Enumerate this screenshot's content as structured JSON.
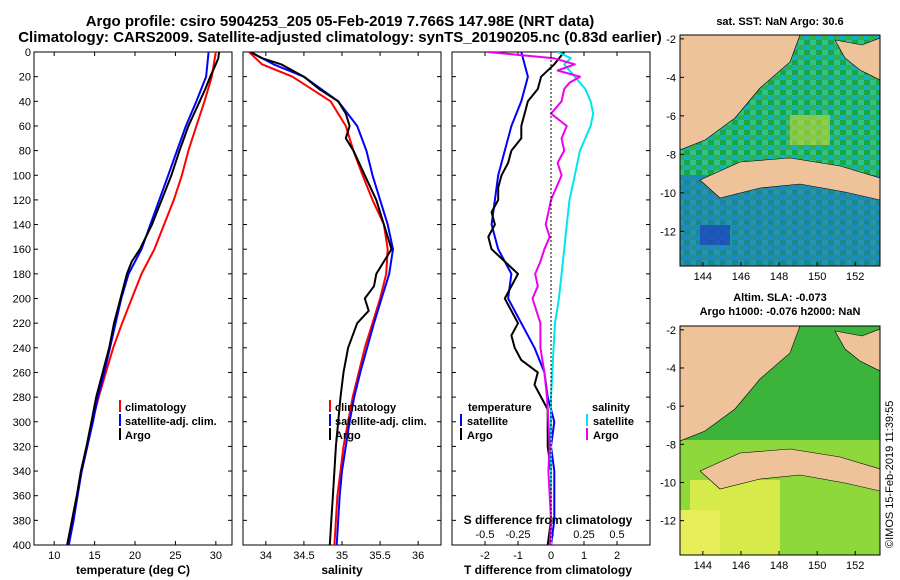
{
  "header": {
    "title_line1": "Argo profile: csiro 5904253_205 05-Feb-2019 7.766S 147.98E (NRT data)",
    "title_line2": "Climatology: CARS2009. Satellite-adjusted climatology: synTS_20190205.nc (0.83d earlier)"
  },
  "colors": {
    "climatology": "#ff0000",
    "satellite": "#0000ff",
    "argo": "#000000",
    "salinity_satellite": "#00e5ee",
    "salinity_argo": "#ee00ee",
    "land": "#efc39a"
  },
  "map_sst": {
    "title": "sat. SST: NaN Argo: 30.6",
    "xticks": [
      "144",
      "146",
      "148",
      "150",
      "152"
    ],
    "yticks": [
      "-2",
      "-4",
      "-6",
      "-8",
      "-10",
      "-12"
    ]
  },
  "map_sla": {
    "title_line1": "Altim. SLA: -0.073",
    "title_line2": "Argo h1000: -0.076 h2000: NaN",
    "xticks": [
      "144",
      "146",
      "148",
      "150",
      "152"
    ],
    "yticks": [
      "-2",
      "-4",
      "-6",
      "-8",
      "-10",
      "-12"
    ]
  },
  "footer": {
    "credit": "©IMOS 15-Feb-2019 11:39:55"
  },
  "chart_data": [
    {
      "type": "line",
      "name": "temperature",
      "xlabel": "temperature (deg C)",
      "xlim": [
        7.5,
        32
      ],
      "ylim": [
        0,
        400
      ],
      "yreversed": true,
      "xticks": [
        10,
        15,
        20,
        25,
        30
      ],
      "yticks": [
        0,
        20,
        40,
        60,
        80,
        100,
        120,
        140,
        160,
        180,
        200,
        220,
        240,
        260,
        280,
        300,
        320,
        340,
        360,
        380,
        400
      ],
      "legend": [
        "climatology",
        "satellite-adj. clim.",
        "Argo"
      ],
      "series": [
        {
          "name": "climatology",
          "depth": [
            0,
            20,
            40,
            60,
            80,
            100,
            120,
            140,
            160,
            180,
            200,
            220,
            240,
            260,
            280,
            300,
            320,
            340,
            360,
            380,
            400
          ],
          "values": [
            30.0,
            29.5,
            28.6,
            27.6,
            26.6,
            25.8,
            24.8,
            23.6,
            22.4,
            20.8,
            19.6,
            18.4,
            17.3,
            16.4,
            15.5,
            14.7,
            14.1,
            13.4,
            12.8,
            12.2,
            11.8
          ]
        },
        {
          "name": "satellite-adj. clim.",
          "depth": [
            0,
            20,
            40,
            60,
            80,
            100,
            120,
            140,
            160,
            180,
            200,
            220,
            240,
            260,
            280,
            300,
            320,
            340,
            360,
            380,
            400
          ],
          "values": [
            29.1,
            28.8,
            27.6,
            26.3,
            25.2,
            24.1,
            23.0,
            21.9,
            20.8,
            19.2,
            18.3,
            17.6,
            16.9,
            16.2,
            15.4,
            14.8,
            14.1,
            13.4,
            12.9,
            12.4,
            11.8
          ]
        },
        {
          "name": "Argo",
          "depth": [
            0,
            5,
            10,
            20,
            30,
            40,
            60,
            80,
            100,
            120,
            140,
            160,
            170,
            180,
            200,
            220,
            240,
            260,
            280,
            300,
            320,
            340,
            360,
            380,
            400
          ],
          "values": [
            30.4,
            30.3,
            30.0,
            29.3,
            28.7,
            28.0,
            26.6,
            25.5,
            24.5,
            23.3,
            22.1,
            20.6,
            19.6,
            19.0,
            18.2,
            17.4,
            16.8,
            16.0,
            15.2,
            14.6,
            14.0,
            13.3,
            12.8,
            12.2,
            11.6
          ]
        }
      ]
    },
    {
      "type": "line",
      "name": "salinity",
      "xlabel": "salinity",
      "xlim": [
        33.7,
        36.3
      ],
      "ylim": [
        0,
        400
      ],
      "yreversed": true,
      "xticks": [
        34,
        34.5,
        35,
        35.5,
        36
      ],
      "yticks": [
        0,
        20,
        40,
        60,
        80,
        100,
        120,
        140,
        160,
        180,
        200,
        220,
        240,
        260,
        280,
        300,
        320,
        340,
        360,
        380,
        400
      ],
      "legend": [
        "climatology",
        "satellite-adj. clim.",
        "Argo"
      ],
      "series": [
        {
          "name": "climatology",
          "depth": [
            0,
            10,
            20,
            40,
            60,
            80,
            100,
            120,
            140,
            160,
            180,
            200,
            220,
            240,
            260,
            280,
            300,
            320,
            340,
            360,
            380,
            400
          ],
          "values": [
            33.78,
            33.95,
            34.35,
            34.85,
            35.05,
            35.15,
            35.27,
            35.4,
            35.55,
            35.6,
            35.58,
            35.5,
            35.4,
            35.3,
            35.22,
            35.14,
            35.08,
            35.02,
            34.98,
            34.94,
            34.92,
            34.9
          ]
        },
        {
          "name": "satellite-adj. clim.",
          "depth": [
            0,
            10,
            20,
            40,
            60,
            80,
            100,
            120,
            140,
            160,
            180,
            200,
            220,
            240,
            260,
            280,
            300,
            320,
            340,
            360,
            380,
            400
          ],
          "values": [
            33.8,
            34.1,
            34.5,
            34.95,
            35.2,
            35.32,
            35.4,
            35.5,
            35.6,
            35.67,
            35.62,
            35.52,
            35.42,
            35.33,
            35.24,
            35.16,
            35.1,
            35.05,
            35.0,
            34.97,
            34.95,
            34.93
          ]
        },
        {
          "name": "Argo",
          "depth": [
            0,
            5,
            10,
            20,
            30,
            40,
            50,
            60,
            70,
            80,
            100,
            120,
            140,
            160,
            170,
            180,
            190,
            200,
            210,
            220,
            240,
            260,
            280,
            300,
            320,
            340,
            360,
            380,
            400
          ],
          "values": [
            33.8,
            33.95,
            34.2,
            34.5,
            34.7,
            34.95,
            35.05,
            35.1,
            35.05,
            35.15,
            35.3,
            35.45,
            35.55,
            35.65,
            35.55,
            35.45,
            35.42,
            35.3,
            35.35,
            35.2,
            35.08,
            35.02,
            34.98,
            34.95,
            34.92,
            34.9,
            34.88,
            34.86,
            34.84
          ]
        }
      ]
    },
    {
      "type": "line",
      "name": "difference",
      "xlabel": "T difference from climatology",
      "xlabel_top": "S difference from climatology",
      "xlim": [
        -3,
        3
      ],
      "ylim": [
        0,
        400
      ],
      "yreversed": true,
      "xticks": [
        "-2",
        "-1",
        "0",
        "1",
        "2"
      ],
      "xticks_salinity": [
        "-0.5",
        "-0.25",
        "0",
        "0.25",
        "0.5"
      ],
      "yticks": [
        0,
        20,
        40,
        60,
        80,
        100,
        120,
        140,
        160,
        180,
        200,
        220,
        240,
        260,
        280,
        300,
        320,
        340,
        360,
        380,
        400
      ],
      "legend_temperature": {
        "heading": "temperature",
        "items": [
          "satellite",
          "Argo"
        ]
      },
      "legend_salinity": {
        "heading": "salinity",
        "items": [
          "satellite",
          "Argo"
        ]
      },
      "series": [
        {
          "name": "temperature satellite",
          "depth": [
            0,
            20,
            40,
            60,
            80,
            100,
            120,
            140,
            160,
            180,
            200,
            220,
            240,
            260,
            280,
            300,
            320,
            340,
            360,
            380,
            400
          ],
          "values": [
            -0.9,
            -0.7,
            -0.9,
            -1.2,
            -1.4,
            -1.6,
            -1.7,
            -1.8,
            -1.6,
            -1.2,
            -1.3,
            -0.9,
            -0.5,
            -0.2,
            -0.1,
            0.1,
            0.0,
            0.1,
            0.1,
            0.1,
            0.0
          ]
        },
        {
          "name": "temperature Argo",
          "depth": [
            0,
            10,
            20,
            30,
            40,
            50,
            60,
            70,
            80,
            90,
            100,
            110,
            120,
            130,
            140,
            150,
            160,
            170,
            180,
            190,
            200,
            210,
            220,
            230,
            240,
            250,
            260,
            270,
            280,
            290,
            300,
            320,
            340,
            360,
            380,
            400
          ],
          "values": [
            0.4,
            0.1,
            -0.3,
            -0.4,
            -0.7,
            -0.8,
            -0.9,
            -0.9,
            -1.2,
            -1.3,
            -1.5,
            -1.6,
            -1.6,
            -1.8,
            -1.7,
            -1.9,
            -1.8,
            -1.4,
            -1.0,
            -1.2,
            -1.4,
            -1.2,
            -1.0,
            -1.2,
            -1.1,
            -0.9,
            -0.4,
            -0.5,
            -0.3,
            -0.1,
            -0.1,
            -0.1,
            0.0,
            0.0,
            0.0,
            -0.1
          ]
        },
        {
          "name": "salinity satellite",
          "depth": [
            0,
            5,
            10,
            20,
            30,
            40,
            50,
            60,
            80,
            100,
            120,
            140,
            160,
            180,
            200,
            220,
            240,
            260,
            280,
            300,
            320,
            340,
            360,
            380,
            400
          ],
          "values": [
            0.05,
            0.15,
            0.1,
            0.18,
            0.26,
            0.3,
            0.32,
            0.3,
            0.22,
            0.18,
            0.14,
            0.12,
            0.1,
            0.08,
            0.06,
            0.03,
            0.02,
            0.01,
            0.0,
            0.0,
            0.0,
            0.0,
            0.0,
            0.0,
            0.0
          ]
        },
        {
          "name": "salinity Argo",
          "depth": [
            0,
            5,
            10,
            15,
            20,
            25,
            30,
            40,
            50,
            60,
            70,
            80,
            90,
            100,
            110,
            120,
            130,
            140,
            150,
            160,
            170,
            180,
            190,
            200,
            220,
            240,
            260,
            280,
            300,
            320,
            340,
            360,
            380,
            400
          ],
          "values": [
            -0.48,
            0.02,
            0.18,
            0.05,
            0.22,
            0.14,
            0.1,
            0.08,
            0.0,
            0.12,
            0.08,
            0.1,
            0.05,
            0.08,
            0.04,
            0.0,
            -0.02,
            -0.04,
            -0.01,
            -0.05,
            -0.08,
            -0.12,
            -0.1,
            -0.14,
            -0.08,
            -0.08,
            -0.05,
            -0.03,
            -0.02,
            -0.01,
            -0.02,
            -0.01,
            0.0,
            -0.01
          ]
        }
      ]
    }
  ]
}
